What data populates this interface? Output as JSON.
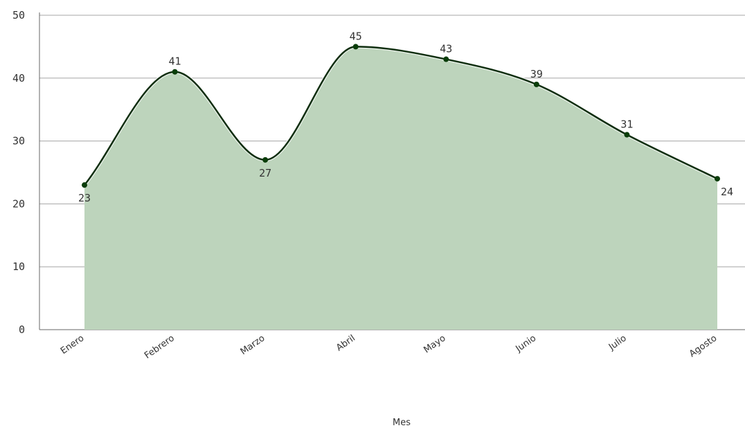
{
  "chart_data": {
    "type": "area",
    "categories": [
      "Enero",
      "Febrero",
      "Marzo",
      "Abril",
      "Mayo",
      "Junio",
      "Julio",
      "Agosto"
    ],
    "values": [
      23,
      41,
      27,
      45,
      43,
      39,
      31,
      24
    ],
    "xlabel": "Mes",
    "ylabel": "",
    "ylim": [
      0,
      50
    ],
    "yticks": [
      "0",
      "10",
      "20",
      "30",
      "40",
      "50"
    ],
    "grid": true,
    "smooth": true,
    "data_labels": true,
    "colors": {
      "line": "#0f2e0f",
      "fill": "#bdd4bc",
      "point": "#0a3d0a",
      "grid": "#a6a6a6",
      "axis": "#666666"
    }
  }
}
